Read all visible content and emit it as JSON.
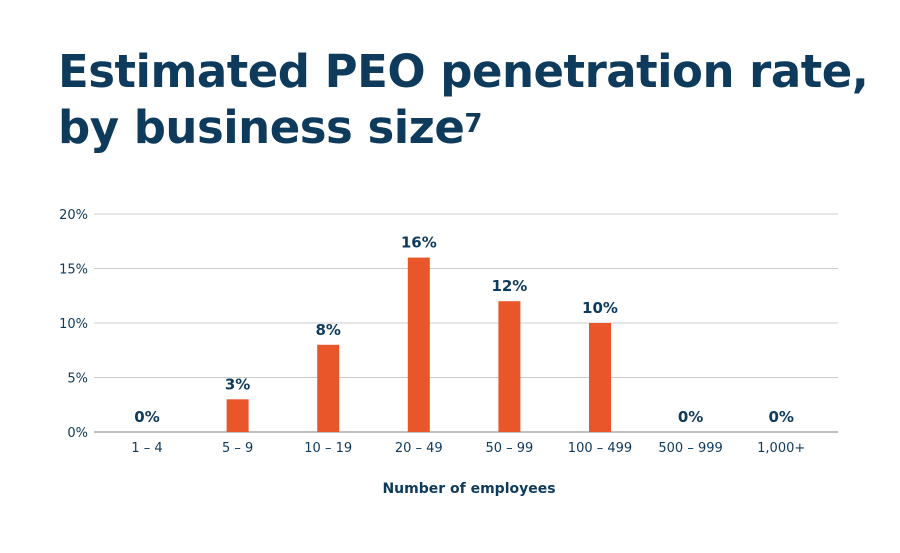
{
  "chart_data": {
    "type": "bar",
    "title": "Estimated PEO penetration rate, by business size",
    "title_line1": "Estimated PEO penetration rate,",
    "title_line2": "by business size",
    "title_footnote": "7",
    "xlabel": "Number of employees",
    "ylabel": "",
    "categories": [
      "1 – 4",
      "5 – 9",
      "10 – 19",
      "20 – 49",
      "50 – 99",
      "100 – 499",
      "500 – 999",
      "1,000+"
    ],
    "values": [
      0,
      3,
      8,
      16,
      12,
      10,
      0,
      0
    ],
    "data_labels": [
      "0%",
      "3%",
      "8%",
      "16%",
      "12%",
      "10%",
      "0%",
      "0%"
    ],
    "ylim": [
      0,
      20
    ],
    "yticks": [
      0,
      5,
      10,
      15,
      20
    ],
    "ytick_labels": [
      "0%",
      "5%",
      "10%",
      "15%",
      "20%"
    ],
    "grid": true,
    "legend": "none",
    "colors": {
      "bar": "#e8562a",
      "text": "#0e3a5b",
      "grid": "#cccccc"
    }
  }
}
